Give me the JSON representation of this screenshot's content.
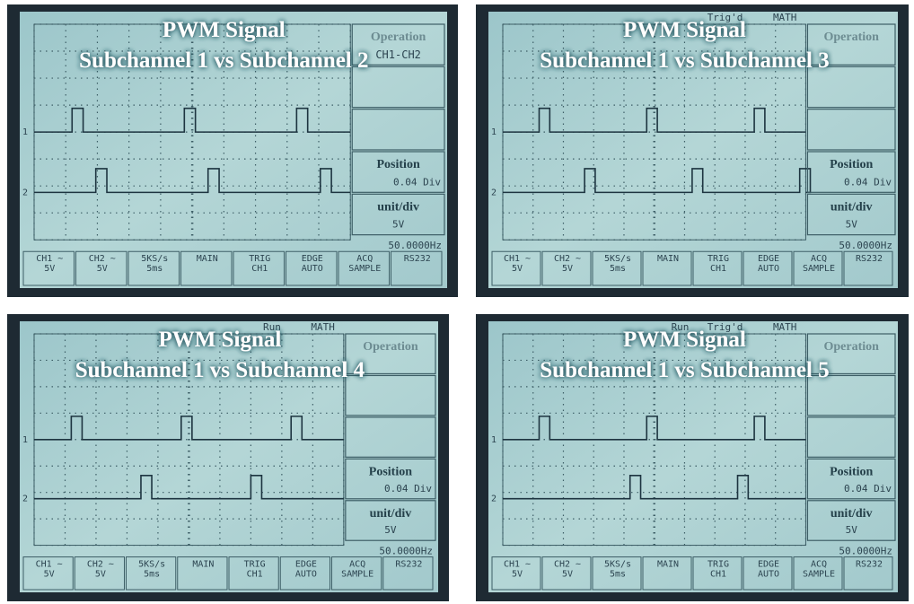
{
  "panels": [
    {
      "title": "PWM Signal",
      "subtitle": "Subchannel 1 vs Subchannel 2",
      "menu_title": "Operation",
      "menu_sub": "CH1-CH2",
      "position_label": "Position",
      "position_value": "0.04 Div",
      "unit_label": "unit/div",
      "unit_value": "5V",
      "frequency": "50.0000Hz"
    },
    {
      "title": "PWM Signal",
      "subtitle": "Subchannel 1 vs Subchannel 3",
      "status_labels": [
        "Trig'd",
        "MATH"
      ],
      "menu_title": "Operation",
      "position_label": "Position",
      "position_value": "0.04 Div",
      "unit_label": "unit/div",
      "unit_value": "5V",
      "frequency": "50.0000Hz"
    },
    {
      "title": "PWM Signal",
      "subtitle": "Subchannel 1 vs Subchannel 4",
      "status_labels": [
        "Run",
        "MATH"
      ],
      "menu_title": "Operation",
      "position_label": "Position",
      "position_value": "0.04 Div",
      "unit_label": "unit/div",
      "unit_value": "5V",
      "frequency": "50.0000Hz"
    },
    {
      "title": "PWM Signal",
      "subtitle": "Subchannel 1 vs Subchannel 5",
      "status_labels": [
        "Run",
        "Trig'd",
        "MATH"
      ],
      "menu_title": "Operation",
      "position_label": "Position",
      "position_value": "0.04 Div",
      "unit_label": "unit/div",
      "unit_value": "5V",
      "frequency": "50.0000Hz"
    }
  ],
  "trace_labels": [
    "1",
    "2"
  ],
  "status_bar": [
    [
      "CH1 ~",
      "5V"
    ],
    [
      "CH2 ~",
      "5V"
    ],
    [
      "5KS/s",
      "5ms"
    ],
    [
      "MAIN"
    ],
    [
      "TRIG",
      "CH1"
    ],
    [
      "EDGE",
      "AUTO"
    ],
    [
      "ACQ",
      "SAMPLE"
    ],
    [
      "RS232"
    ]
  ]
}
